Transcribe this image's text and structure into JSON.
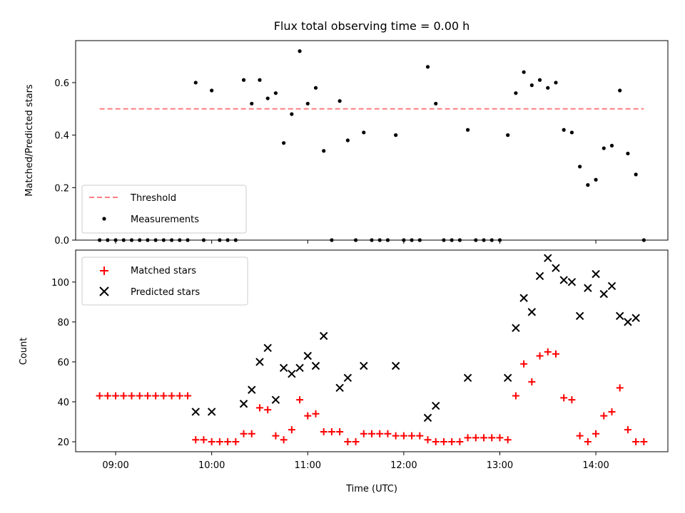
{
  "chart_data": {
    "type": "scatter",
    "title": "Flux total observing time = 0.00 h",
    "xlabel": "Time (UTC)",
    "x_tick_labels": [
      "09:00",
      "10:00",
      "11:00",
      "12:00",
      "13:00",
      "14:00"
    ],
    "x_tick_hours": [
      9,
      10,
      11,
      12,
      13,
      14
    ],
    "xlim": [
      "08:35",
      "14:45"
    ],
    "panels": [
      {
        "ylabel": "Matched/Predicted stars",
        "ylim": [
          0,
          0.76
        ],
        "y_ticks": [
          0.0,
          0.2,
          0.4,
          0.6
        ],
        "y_tick_labels": [
          "0.0",
          "0.2",
          "0.4",
          "0.6"
        ],
        "legend_position": "lower-left",
        "threshold": {
          "name": "Threshold",
          "value": 0.5,
          "x_range": [
            "08:50",
            "14:30"
          ],
          "color": "#ff7f7f"
        },
        "measurements": {
          "name": "Measurements",
          "color": "#000000",
          "points": [
            {
              "x": "08:50",
              "y": 0.0
            },
            {
              "x": "08:55",
              "y": 0.0
            },
            {
              "x": "09:00",
              "y": 0.0
            },
            {
              "x": "09:05",
              "y": 0.0
            },
            {
              "x": "09:10",
              "y": 0.0
            },
            {
              "x": "09:15",
              "y": 0.0
            },
            {
              "x": "09:20",
              "y": 0.0
            },
            {
              "x": "09:25",
              "y": 0.0
            },
            {
              "x": "09:30",
              "y": 0.0
            },
            {
              "x": "09:35",
              "y": 0.0
            },
            {
              "x": "09:40",
              "y": 0.0
            },
            {
              "x": "09:45",
              "y": 0.0
            },
            {
              "x": "09:50",
              "y": 0.6
            },
            {
              "x": "09:55",
              "y": 0.0
            },
            {
              "x": "10:00",
              "y": 0.57
            },
            {
              "x": "10:05",
              "y": 0.0
            },
            {
              "x": "10:10",
              "y": 0.0
            },
            {
              "x": "10:15",
              "y": 0.0
            },
            {
              "x": "10:20",
              "y": 0.61
            },
            {
              "x": "10:25",
              "y": 0.52
            },
            {
              "x": "10:30",
              "y": 0.61
            },
            {
              "x": "10:35",
              "y": 0.54
            },
            {
              "x": "10:40",
              "y": 0.56
            },
            {
              "x": "10:45",
              "y": 0.37
            },
            {
              "x": "10:50",
              "y": 0.48
            },
            {
              "x": "10:55",
              "y": 0.72
            },
            {
              "x": "11:00",
              "y": 0.52
            },
            {
              "x": "11:05",
              "y": 0.58
            },
            {
              "x": "11:10",
              "y": 0.34
            },
            {
              "x": "11:15",
              "y": 0.0
            },
            {
              "x": "11:20",
              "y": 0.53
            },
            {
              "x": "11:25",
              "y": 0.38
            },
            {
              "x": "11:30",
              "y": 0.0
            },
            {
              "x": "11:35",
              "y": 0.41
            },
            {
              "x": "11:40",
              "y": 0.0
            },
            {
              "x": "11:45",
              "y": 0.0
            },
            {
              "x": "11:50",
              "y": 0.0
            },
            {
              "x": "11:55",
              "y": 0.4
            },
            {
              "x": "12:00",
              "y": 0.0
            },
            {
              "x": "12:05",
              "y": 0.0
            },
            {
              "x": "12:10",
              "y": 0.0
            },
            {
              "x": "12:15",
              "y": 0.66
            },
            {
              "x": "12:20",
              "y": 0.52
            },
            {
              "x": "12:25",
              "y": 0.0
            },
            {
              "x": "12:30",
              "y": 0.0
            },
            {
              "x": "12:35",
              "y": 0.0
            },
            {
              "x": "12:40",
              "y": 0.42
            },
            {
              "x": "12:45",
              "y": 0.0
            },
            {
              "x": "12:50",
              "y": 0.0
            },
            {
              "x": "12:55",
              "y": 0.0
            },
            {
              "x": "13:00",
              "y": 0.0
            },
            {
              "x": "13:05",
              "y": 0.4
            },
            {
              "x": "13:10",
              "y": 0.56
            },
            {
              "x": "13:15",
              "y": 0.64
            },
            {
              "x": "13:20",
              "y": 0.59
            },
            {
              "x": "13:25",
              "y": 0.61
            },
            {
              "x": "13:30",
              "y": 0.58
            },
            {
              "x": "13:35",
              "y": 0.6
            },
            {
              "x": "13:40",
              "y": 0.42
            },
            {
              "x": "13:45",
              "y": 0.41
            },
            {
              "x": "13:50",
              "y": 0.28
            },
            {
              "x": "13:55",
              "y": 0.21
            },
            {
              "x": "14:00",
              "y": 0.23
            },
            {
              "x": "14:05",
              "y": 0.35
            },
            {
              "x": "14:10",
              "y": 0.36
            },
            {
              "x": "14:15",
              "y": 0.57
            },
            {
              "x": "14:20",
              "y": 0.33
            },
            {
              "x": "14:25",
              "y": 0.25
            },
            {
              "x": "14:30",
              "y": 0.0
            }
          ]
        }
      },
      {
        "ylabel": "Count",
        "ylim": [
          15,
          116
        ],
        "y_ticks": [
          20,
          40,
          60,
          80,
          100
        ],
        "y_tick_labels": [
          "20",
          "40",
          "60",
          "80",
          "100"
        ],
        "legend_position": "upper-left",
        "series": [
          {
            "name": "Matched stars",
            "marker": "+",
            "color": "#ff0000",
            "points": [
              {
                "x": "08:50",
                "y": 43
              },
              {
                "x": "08:55",
                "y": 43
              },
              {
                "x": "09:00",
                "y": 43
              },
              {
                "x": "09:05",
                "y": 43
              },
              {
                "x": "09:10",
                "y": 43
              },
              {
                "x": "09:15",
                "y": 43
              },
              {
                "x": "09:20",
                "y": 43
              },
              {
                "x": "09:25",
                "y": 43
              },
              {
                "x": "09:30",
                "y": 43
              },
              {
                "x": "09:35",
                "y": 43
              },
              {
                "x": "09:40",
                "y": 43
              },
              {
                "x": "09:45",
                "y": 43
              },
              {
                "x": "09:50",
                "y": 21
              },
              {
                "x": "09:55",
                "y": 21
              },
              {
                "x": "10:00",
                "y": 20
              },
              {
                "x": "10:05",
                "y": 20
              },
              {
                "x": "10:10",
                "y": 20
              },
              {
                "x": "10:15",
                "y": 20
              },
              {
                "x": "10:20",
                "y": 24
              },
              {
                "x": "10:25",
                "y": 24
              },
              {
                "x": "10:30",
                "y": 37
              },
              {
                "x": "10:35",
                "y": 36
              },
              {
                "x": "10:40",
                "y": 23
              },
              {
                "x": "10:45",
                "y": 21
              },
              {
                "x": "10:50",
                "y": 26
              },
              {
                "x": "10:55",
                "y": 41
              },
              {
                "x": "11:00",
                "y": 33
              },
              {
                "x": "11:05",
                "y": 34
              },
              {
                "x": "11:10",
                "y": 25
              },
              {
                "x": "11:15",
                "y": 25
              },
              {
                "x": "11:20",
                "y": 25
              },
              {
                "x": "11:25",
                "y": 20
              },
              {
                "x": "11:30",
                "y": 20
              },
              {
                "x": "11:35",
                "y": 24
              },
              {
                "x": "11:40",
                "y": 24
              },
              {
                "x": "11:45",
                "y": 24
              },
              {
                "x": "11:50",
                "y": 24
              },
              {
                "x": "11:55",
                "y": 23
              },
              {
                "x": "12:00",
                "y": 23
              },
              {
                "x": "12:05",
                "y": 23
              },
              {
                "x": "12:10",
                "y": 23
              },
              {
                "x": "12:15",
                "y": 21
              },
              {
                "x": "12:20",
                "y": 20
              },
              {
                "x": "12:25",
                "y": 20
              },
              {
                "x": "12:30",
                "y": 20
              },
              {
                "x": "12:35",
                "y": 20
              },
              {
                "x": "12:40",
                "y": 22
              },
              {
                "x": "12:45",
                "y": 22
              },
              {
                "x": "12:50",
                "y": 22
              },
              {
                "x": "12:55",
                "y": 22
              },
              {
                "x": "13:00",
                "y": 22
              },
              {
                "x": "13:05",
                "y": 21
              },
              {
                "x": "13:10",
                "y": 43
              },
              {
                "x": "13:15",
                "y": 59
              },
              {
                "x": "13:20",
                "y": 50
              },
              {
                "x": "13:25",
                "y": 63
              },
              {
                "x": "13:30",
                "y": 65
              },
              {
                "x": "13:35",
                "y": 64
              },
              {
                "x": "13:40",
                "y": 42
              },
              {
                "x": "13:45",
                "y": 41
              },
              {
                "x": "13:50",
                "y": 23
              },
              {
                "x": "13:55",
                "y": 20
              },
              {
                "x": "14:00",
                "y": 24
              },
              {
                "x": "14:05",
                "y": 33
              },
              {
                "x": "14:10",
                "y": 35
              },
              {
                "x": "14:15",
                "y": 47
              },
              {
                "x": "14:20",
                "y": 26
              },
              {
                "x": "14:25",
                "y": 20
              },
              {
                "x": "14:30",
                "y": 20
              }
            ]
          },
          {
            "name": "Predicted stars",
            "marker": "x",
            "color": "#000000",
            "points": [
              {
                "x": "09:50",
                "y": 35
              },
              {
                "x": "10:00",
                "y": 35
              },
              {
                "x": "10:20",
                "y": 39
              },
              {
                "x": "10:25",
                "y": 46
              },
              {
                "x": "10:30",
                "y": 60
              },
              {
                "x": "10:35",
                "y": 67
              },
              {
                "x": "10:40",
                "y": 41
              },
              {
                "x": "10:45",
                "y": 57
              },
              {
                "x": "10:50",
                "y": 54
              },
              {
                "x": "10:55",
                "y": 57
              },
              {
                "x": "11:00",
                "y": 63
              },
              {
                "x": "11:05",
                "y": 58
              },
              {
                "x": "11:10",
                "y": 73
              },
              {
                "x": "11:20",
                "y": 47
              },
              {
                "x": "11:25",
                "y": 52
              },
              {
                "x": "11:35",
                "y": 58
              },
              {
                "x": "11:55",
                "y": 58
              },
              {
                "x": "12:15",
                "y": 32
              },
              {
                "x": "12:20",
                "y": 38
              },
              {
                "x": "12:40",
                "y": 52
              },
              {
                "x": "13:05",
                "y": 52
              },
              {
                "x": "13:10",
                "y": 77
              },
              {
                "x": "13:15",
                "y": 92
              },
              {
                "x": "13:20",
                "y": 85
              },
              {
                "x": "13:25",
                "y": 103
              },
              {
                "x": "13:30",
                "y": 112
              },
              {
                "x": "13:35",
                "y": 107
              },
              {
                "x": "13:40",
                "y": 101
              },
              {
                "x": "13:45",
                "y": 100
              },
              {
                "x": "13:50",
                "y": 83
              },
              {
                "x": "13:55",
                "y": 97
              },
              {
                "x": "14:00",
                "y": 104
              },
              {
                "x": "14:05",
                "y": 94
              },
              {
                "x": "14:10",
                "y": 98
              },
              {
                "x": "14:15",
                "y": 83
              },
              {
                "x": "14:20",
                "y": 80
              },
              {
                "x": "14:25",
                "y": 82
              }
            ]
          }
        ]
      }
    ]
  }
}
